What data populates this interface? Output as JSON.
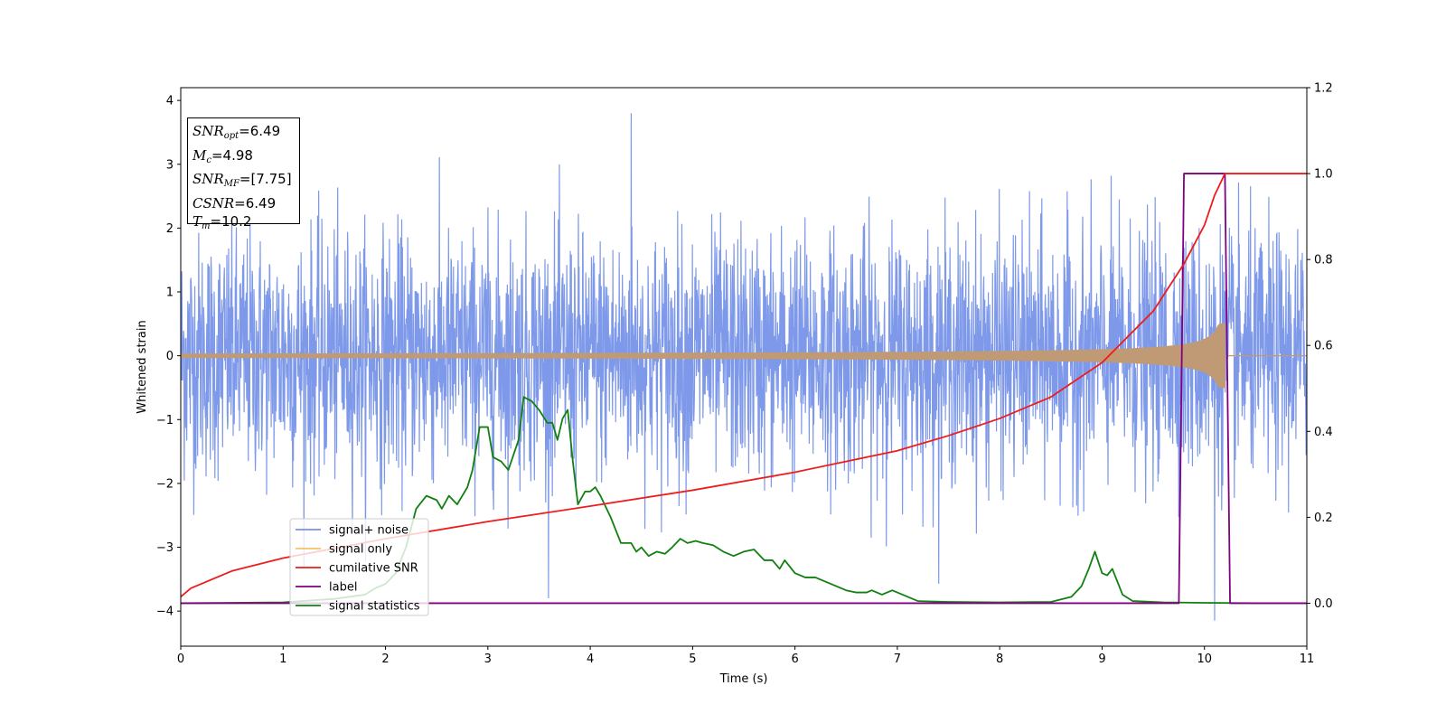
{
  "chart_data": {
    "type": "line",
    "xlabel": "Time (s)",
    "ylabel": "Whitened strain",
    "xlim": [
      0,
      11
    ],
    "ylim": [
      -4.55,
      4.2
    ],
    "y2lim": [
      -0.1,
      1.2
    ],
    "x_ticks": [
      "0",
      "1",
      "2",
      "3",
      "4",
      "5",
      "6",
      "7",
      "8",
      "9",
      "10",
      "11"
    ],
    "y_ticks": [
      "4",
      "3",
      "2",
      "1",
      "0",
      "−1",
      "−2",
      "−3",
      "−4"
    ],
    "y2_ticks": [
      "1.2",
      "1.0",
      "0.8",
      "0.6",
      "0.4",
      "0.2",
      "0.0"
    ],
    "legend_position": "lower-left",
    "grid": false,
    "annotations": {
      "snr_opt_label": "SNR",
      "snr_opt_sub": "opt",
      "snr_opt_value": "=6.49",
      "mc_label": "M",
      "mc_sub": "c",
      "mc_value": "=4.98",
      "snr_mf_label": "SNR",
      "snr_mf_sub": "MF",
      "snr_mf_value": "=[7.75]",
      "csnr_label": "CSNR",
      "csnr_value": "=6.49",
      "tm_label": "T",
      "tm_sub": "m",
      "tm_value": "=10.2"
    },
    "series": [
      {
        "name": "signal+ noise",
        "color": "#7793e8",
        "axis": "left",
        "description_note": "white noise, amplitude ≈ ±2.5 with spikes to about ±3.8",
        "envelope": {
          "typical": 2.3,
          "max": 3.8,
          "min": -4.15
        }
      },
      {
        "name": "signal only",
        "color": "#f5c46a",
        "axis": "left",
        "chirp": {
          "t_start": 0,
          "t_merger": 10.2,
          "amp_start": 0.03,
          "amp_merger": 0.5
        }
      },
      {
        "name": "cumilative SNR",
        "color": "#ee1c1c",
        "axis": "right",
        "x": [
          0,
          0.1,
          0.5,
          1,
          2,
          3,
          4,
          5,
          6,
          7,
          7.5,
          8,
          8.5,
          9,
          9.5,
          9.8,
          10,
          10.1,
          10.2,
          11
        ],
        "y": [
          0.015,
          0.035,
          0.075,
          0.105,
          0.15,
          0.19,
          0.226,
          0.263,
          0.305,
          0.355,
          0.39,
          0.43,
          0.48,
          0.56,
          0.68,
          0.79,
          0.88,
          0.95,
          1.0,
          1.0
        ]
      },
      {
        "name": "label",
        "color": "#800080",
        "axis": "right",
        "x": [
          0,
          9.75,
          9.8,
          10.2,
          10.25,
          11
        ],
        "y": [
          0,
          0,
          1,
          1,
          0,
          0
        ]
      },
      {
        "name": "signal statistics",
        "color": "#118011",
        "axis": "right",
        "x": [
          0,
          1.0,
          1.5,
          1.8,
          1.9,
          2.0,
          2.1,
          2.2,
          2.3,
          2.4,
          2.5,
          2.55,
          2.62,
          2.7,
          2.8,
          2.85,
          2.92,
          3.0,
          3.05,
          3.13,
          3.2,
          3.3,
          3.35,
          3.43,
          3.5,
          3.58,
          3.63,
          3.68,
          3.73,
          3.78,
          3.83,
          3.88,
          3.95,
          4.0,
          4.05,
          4.1,
          4.2,
          4.3,
          4.4,
          4.45,
          4.5,
          4.57,
          4.65,
          4.73,
          4.8,
          4.88,
          4.95,
          5.03,
          5.1,
          5.2,
          5.3,
          5.4,
          5.5,
          5.6,
          5.7,
          5.78,
          5.85,
          5.9,
          6.0,
          6.1,
          6.2,
          6.3,
          6.4,
          6.5,
          6.6,
          6.7,
          6.75,
          6.85,
          6.95,
          7.2,
          7.5,
          8.0,
          8.5,
          8.7,
          8.8,
          8.87,
          8.93,
          9.0,
          9.05,
          9.1,
          9.2,
          9.3,
          9.6,
          10,
          10.5,
          11
        ],
        "y": [
          0.0,
          0.002,
          0.01,
          0.02,
          0.035,
          0.045,
          0.07,
          0.13,
          0.22,
          0.25,
          0.24,
          0.22,
          0.25,
          0.23,
          0.27,
          0.31,
          0.41,
          0.41,
          0.34,
          0.33,
          0.31,
          0.38,
          0.48,
          0.47,
          0.45,
          0.42,
          0.42,
          0.38,
          0.43,
          0.45,
          0.33,
          0.23,
          0.26,
          0.26,
          0.27,
          0.25,
          0.2,
          0.14,
          0.14,
          0.12,
          0.13,
          0.11,
          0.12,
          0.115,
          0.13,
          0.15,
          0.14,
          0.145,
          0.14,
          0.135,
          0.12,
          0.11,
          0.12,
          0.125,
          0.1,
          0.1,
          0.08,
          0.1,
          0.07,
          0.06,
          0.06,
          0.05,
          0.04,
          0.03,
          0.025,
          0.025,
          0.03,
          0.02,
          0.03,
          0.005,
          0.003,
          0.002,
          0.003,
          0.015,
          0.04,
          0.08,
          0.12,
          0.07,
          0.065,
          0.08,
          0.02,
          0.005,
          0.002,
          0.001,
          0.0,
          0.0
        ]
      }
    ]
  }
}
